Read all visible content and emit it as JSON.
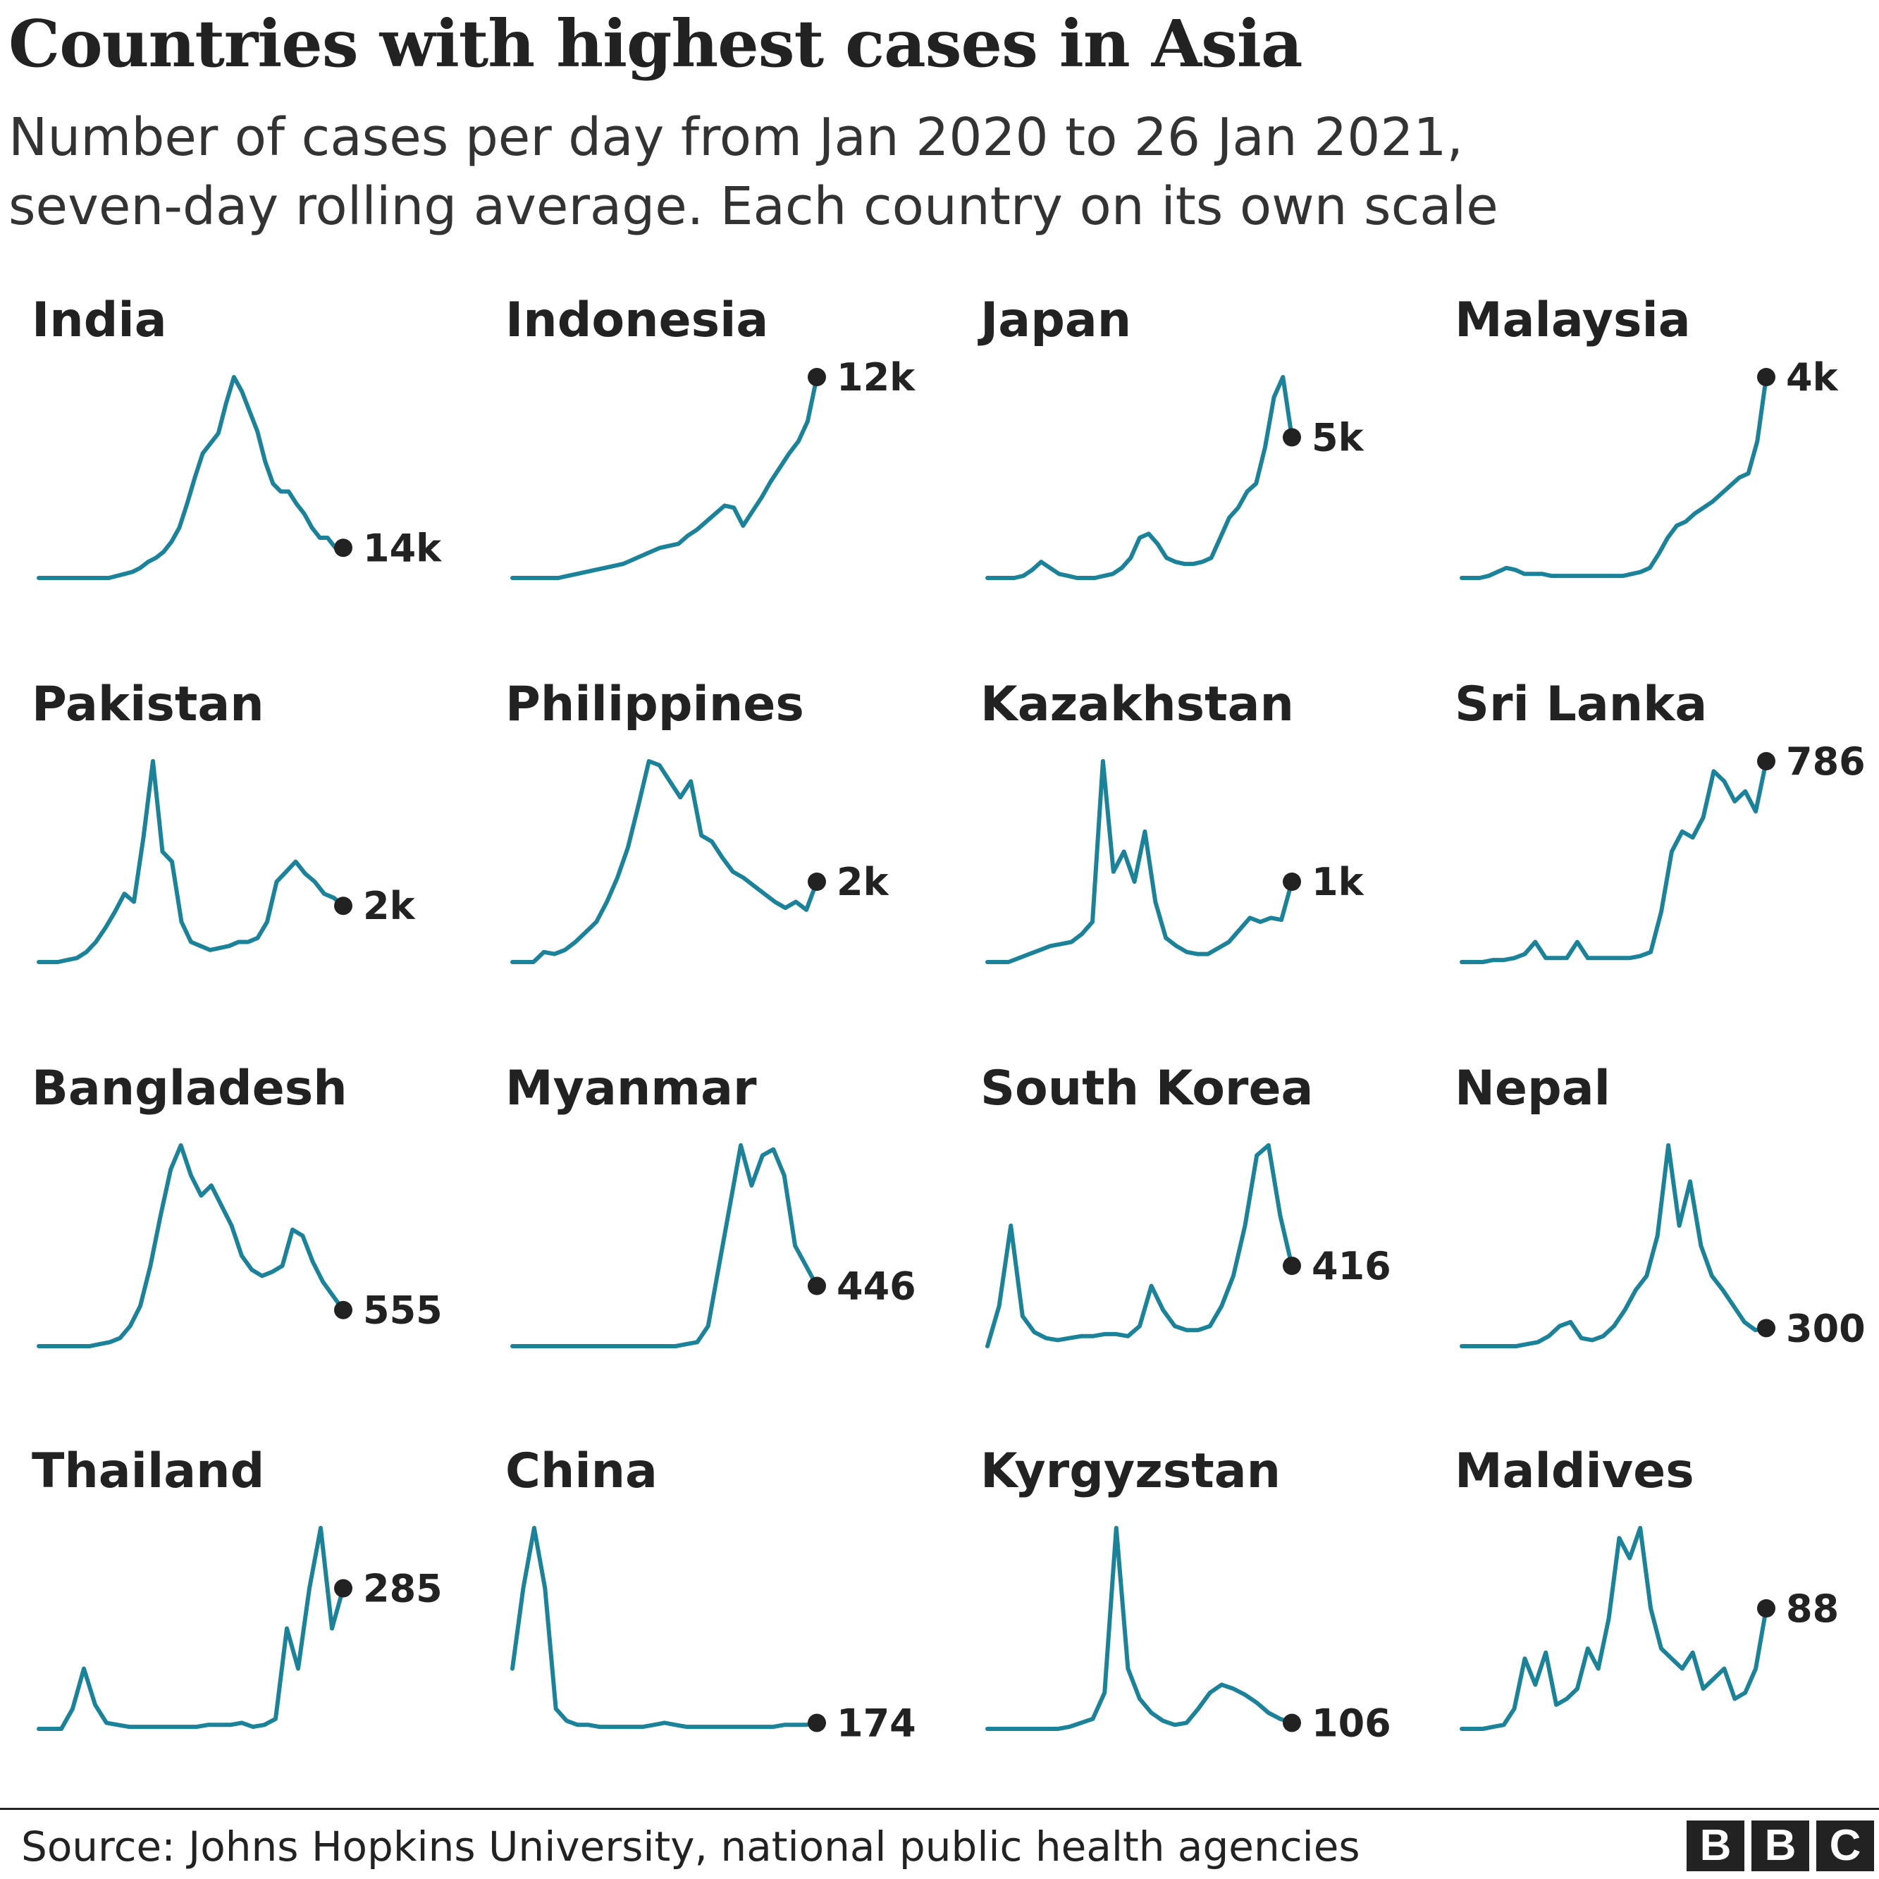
{
  "title": "Countries with highest cases in Asia",
  "subtitle_lines": [
    "Number of cases per day from Jan 2020 to 26 Jan 2021,",
    "seven-day rolling average. Each country on its own scale"
  ],
  "source": "Source: Johns Hopkins University, national public health agencies",
  "logo": [
    "B",
    "B",
    "C"
  ],
  "colors": {
    "line": "#1A8299",
    "dot": "#222222",
    "text": "#222222"
  },
  "chart_data": [
    {
      "type": "line",
      "title": "India",
      "end_label": "14k",
      "values": [
        0,
        0,
        0,
        0,
        0,
        0,
        0,
        0,
        0,
        0,
        0.01,
        0.02,
        0.03,
        0.05,
        0.08,
        0.1,
        0.13,
        0.18,
        0.25,
        0.37,
        0.5,
        0.62,
        0.67,
        0.72,
        0.87,
        1.0,
        0.93,
        0.83,
        0.73,
        0.58,
        0.47,
        0.43,
        0.43,
        0.37,
        0.32,
        0.25,
        0.2,
        0.2,
        0.15,
        0.15
      ]
    },
    {
      "type": "line",
      "title": "Indonesia",
      "end_label": "12k",
      "values": [
        0,
        0,
        0,
        0,
        0,
        0,
        0.01,
        0.02,
        0.03,
        0.04,
        0.05,
        0.06,
        0.07,
        0.09,
        0.11,
        0.13,
        0.15,
        0.16,
        0.17,
        0.21,
        0.24,
        0.28,
        0.32,
        0.36,
        0.35,
        0.26,
        0.33,
        0.4,
        0.48,
        0.55,
        0.62,
        0.68,
        0.78,
        1.0
      ]
    },
    {
      "type": "line",
      "title": "Japan",
      "end_label": "5k",
      "values": [
        0,
        0,
        0,
        0,
        0.01,
        0.04,
        0.08,
        0.05,
        0.02,
        0.01,
        0,
        0,
        0,
        0.01,
        0.02,
        0.05,
        0.1,
        0.2,
        0.22,
        0.17,
        0.1,
        0.08,
        0.07,
        0.07,
        0.08,
        0.1,
        0.2,
        0.3,
        0.35,
        0.43,
        0.47,
        0.65,
        0.9,
        1.0,
        0.7
      ]
    },
    {
      "type": "line",
      "title": "Malaysia",
      "end_label": "4k",
      "values": [
        0,
        0,
        0,
        0.01,
        0.03,
        0.05,
        0.04,
        0.02,
        0.02,
        0.02,
        0.01,
        0.01,
        0.01,
        0.01,
        0.01,
        0.01,
        0.01,
        0.01,
        0.01,
        0.02,
        0.03,
        0.05,
        0.12,
        0.2,
        0.26,
        0.28,
        0.32,
        0.35,
        0.38,
        0.42,
        0.46,
        0.5,
        0.52,
        0.68,
        1.0
      ]
    },
    {
      "type": "line",
      "title": "Pakistan",
      "end_label": "2k",
      "values": [
        0,
        0,
        0,
        0.01,
        0.02,
        0.05,
        0.1,
        0.17,
        0.25,
        0.34,
        0.3,
        0.62,
        1.0,
        0.55,
        0.5,
        0.2,
        0.1,
        0.08,
        0.06,
        0.07,
        0.08,
        0.1,
        0.1,
        0.12,
        0.2,
        0.4,
        0.45,
        0.5,
        0.44,
        0.4,
        0.34,
        0.32,
        0.28
      ]
    },
    {
      "type": "line",
      "title": "Philippines",
      "end_label": "2k",
      "values": [
        0,
        0,
        0,
        0.05,
        0.04,
        0.06,
        0.1,
        0.15,
        0.2,
        0.3,
        0.42,
        0.57,
        0.78,
        1.0,
        0.98,
        0.9,
        0.82,
        0.9,
        0.63,
        0.6,
        0.52,
        0.45,
        0.42,
        0.38,
        0.34,
        0.3,
        0.27,
        0.3,
        0.26,
        0.4
      ]
    },
    {
      "type": "line",
      "title": "Kazakhstan",
      "end_label": "1k",
      "values": [
        0,
        0,
        0,
        0.02,
        0.04,
        0.06,
        0.08,
        0.09,
        0.1,
        0.14,
        0.2,
        1.0,
        0.45,
        0.55,
        0.4,
        0.65,
        0.3,
        0.12,
        0.08,
        0.05,
        0.04,
        0.04,
        0.07,
        0.1,
        0.16,
        0.22,
        0.2,
        0.22,
        0.21,
        0.4
      ]
    },
    {
      "type": "line",
      "title": "Sri Lanka",
      "end_label": "786",
      "values": [
        0,
        0,
        0,
        0.01,
        0.01,
        0.02,
        0.04,
        0.1,
        0.02,
        0.02,
        0.02,
        0.1,
        0.02,
        0.02,
        0.02,
        0.02,
        0.02,
        0.03,
        0.05,
        0.25,
        0.55,
        0.65,
        0.62,
        0.72,
        0.95,
        0.9,
        0.8,
        0.85,
        0.75,
        1.0
      ]
    },
    {
      "type": "line",
      "title": "Bangladesh",
      "end_label": "555",
      "values": [
        0,
        0,
        0,
        0,
        0,
        0,
        0.01,
        0.02,
        0.04,
        0.1,
        0.2,
        0.4,
        0.65,
        0.88,
        1.0,
        0.85,
        0.75,
        0.8,
        0.7,
        0.6,
        0.45,
        0.38,
        0.35,
        0.37,
        0.4,
        0.58,
        0.55,
        0.42,
        0.32,
        0.25,
        0.18
      ]
    },
    {
      "type": "line",
      "title": "Myanmar",
      "end_label": "446",
      "values": [
        0,
        0,
        0,
        0,
        0,
        0,
        0,
        0,
        0,
        0,
        0,
        0,
        0,
        0,
        0,
        0,
        0.01,
        0.02,
        0.1,
        0.4,
        0.7,
        1.0,
        0.8,
        0.95,
        0.98,
        0.85,
        0.5,
        0.4,
        0.3
      ]
    },
    {
      "type": "line",
      "title": "South Korea",
      "end_label": "416",
      "values": [
        0,
        0.2,
        0.6,
        0.15,
        0.07,
        0.04,
        0.03,
        0.04,
        0.05,
        0.05,
        0.06,
        0.06,
        0.05,
        0.1,
        0.3,
        0.18,
        0.1,
        0.08,
        0.08,
        0.1,
        0.2,
        0.35,
        0.6,
        0.95,
        1.0,
        0.65,
        0.4
      ]
    },
    {
      "type": "line",
      "title": "Nepal",
      "end_label": "300",
      "values": [
        0,
        0,
        0,
        0,
        0,
        0,
        0.01,
        0.02,
        0.05,
        0.1,
        0.12,
        0.04,
        0.03,
        0.05,
        0.1,
        0.18,
        0.28,
        0.35,
        0.55,
        1.0,
        0.6,
        0.82,
        0.5,
        0.35,
        0.28,
        0.2,
        0.12,
        0.08,
        0.09
      ]
    },
    {
      "type": "line",
      "title": "Thailand",
      "end_label": "285",
      "values": [
        0,
        0,
        0,
        0.1,
        0.3,
        0.12,
        0.03,
        0.02,
        0.01,
        0.01,
        0.01,
        0.01,
        0.01,
        0.01,
        0.01,
        0.02,
        0.02,
        0.02,
        0.03,
        0.01,
        0.02,
        0.05,
        0.5,
        0.3,
        0.7,
        1.0,
        0.5,
        0.7
      ]
    },
    {
      "type": "line",
      "title": "China",
      "end_label": "174",
      "values": [
        0.3,
        0.7,
        1.0,
        0.7,
        0.1,
        0.04,
        0.02,
        0.02,
        0.01,
        0.01,
        0.01,
        0.01,
        0.01,
        0.02,
        0.03,
        0.02,
        0.01,
        0.01,
        0.01,
        0.01,
        0.01,
        0.01,
        0.01,
        0.01,
        0.01,
        0.02,
        0.02,
        0.02,
        0.03
      ]
    },
    {
      "type": "line",
      "title": "Kyrgyzstan",
      "end_label": "106",
      "values": [
        0,
        0,
        0,
        0,
        0,
        0,
        0,
        0.01,
        0.03,
        0.05,
        0.18,
        1.0,
        0.3,
        0.15,
        0.08,
        0.04,
        0.02,
        0.03,
        0.1,
        0.18,
        0.22,
        0.2,
        0.17,
        0.13,
        0.08,
        0.05,
        0.03
      ]
    },
    {
      "type": "line",
      "title": "Maldives",
      "end_label": "88",
      "values": [
        0,
        0,
        0,
        0.01,
        0.02,
        0.1,
        0.35,
        0.22,
        0.38,
        0.12,
        0.15,
        0.2,
        0.4,
        0.3,
        0.55,
        0.95,
        0.85,
        1.0,
        0.6,
        0.4,
        0.35,
        0.3,
        0.38,
        0.2,
        0.25,
        0.3,
        0.15,
        0.18,
        0.3,
        0.6
      ]
    }
  ]
}
